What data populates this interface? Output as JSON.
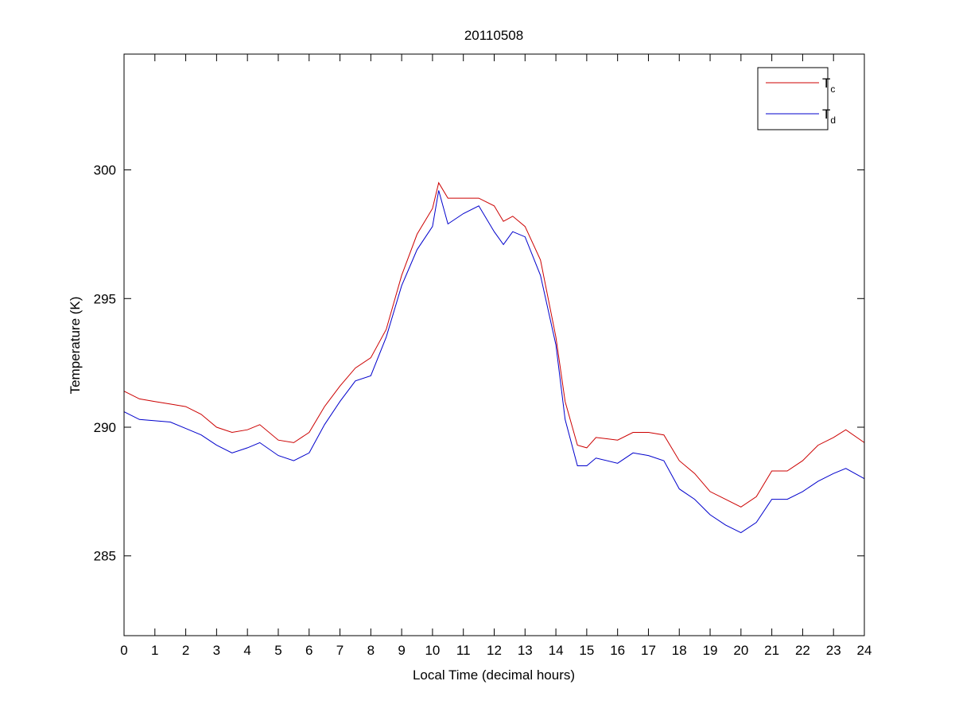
{
  "chart_data": {
    "type": "line",
    "title": "20110508",
    "xlabel": "Local Time (decimal hours)",
    "ylabel": "Temperature (K)",
    "xlim": [
      0,
      24
    ],
    "ylim": [
      281.9,
      304.5
    ],
    "xticks": [
      0,
      1,
      2,
      3,
      4,
      5,
      6,
      7,
      8,
      9,
      10,
      11,
      12,
      13,
      14,
      15,
      16,
      17,
      18,
      19,
      20,
      21,
      22,
      23,
      24
    ],
    "yticks": [
      285,
      290,
      295,
      300
    ],
    "grid": false,
    "legend_position": "top-right",
    "x": [
      0,
      0.5,
      1,
      1.5,
      2,
      2.5,
      3,
      3.5,
      4,
      4.4,
      5,
      5.5,
      6,
      6.5,
      7,
      7.5,
      8,
      8.5,
      9,
      9.5,
      10,
      10.2,
      10.5,
      11,
      11.5,
      12,
      12.3,
      12.6,
      13,
      13.5,
      14,
      14.3,
      14.7,
      15,
      15.3,
      16,
      16.5,
      17,
      17.5,
      18,
      18.5,
      19,
      19.5,
      20,
      20.5,
      21,
      21.5,
      22,
      22.5,
      23,
      23.4,
      24
    ],
    "series": [
      {
        "name": "T",
        "subscript": "c",
        "color": "#cc0000",
        "values": [
          291.4,
          291.1,
          291.0,
          290.9,
          290.8,
          290.5,
          290.0,
          289.8,
          289.9,
          290.1,
          289.5,
          289.4,
          289.8,
          290.8,
          291.6,
          292.3,
          292.7,
          293.8,
          295.9,
          297.5,
          298.5,
          299.5,
          298.9,
          298.9,
          298.9,
          298.6,
          298.0,
          298.2,
          297.8,
          296.5,
          293.5,
          291.0,
          289.3,
          289.2,
          289.6,
          289.5,
          289.8,
          289.8,
          289.7,
          288.7,
          288.2,
          287.5,
          287.2,
          286.9,
          287.3,
          288.3,
          288.3,
          288.7,
          289.3,
          289.6,
          289.9,
          289.4
        ]
      },
      {
        "name": "T",
        "subscript": "d",
        "color": "#0000cc",
        "values": [
          290.6,
          290.3,
          290.25,
          290.2,
          289.95,
          289.7,
          289.3,
          289.0,
          289.2,
          289.4,
          288.9,
          288.7,
          289.0,
          290.1,
          291.0,
          291.8,
          292.0,
          293.5,
          295.5,
          296.9,
          297.8,
          299.2,
          297.9,
          298.3,
          298.6,
          297.6,
          297.1,
          297.6,
          297.4,
          295.9,
          293.2,
          290.3,
          288.5,
          288.5,
          288.8,
          288.6,
          289.0,
          288.9,
          288.7,
          287.6,
          287.2,
          286.6,
          286.2,
          285.9,
          286.3,
          287.2,
          287.2,
          287.5,
          287.9,
          288.2,
          288.4,
          288.0
        ]
      }
    ]
  }
}
